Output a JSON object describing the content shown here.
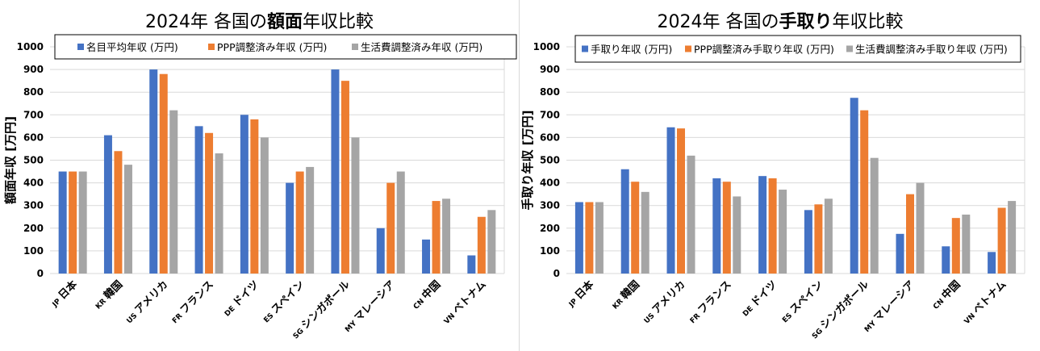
{
  "chart_data": [
    {
      "type": "bar",
      "title_parts": [
        "2024年 各国の",
        "額面",
        "年収比較"
      ],
      "ylabel": "額面年収 [万円]",
      "ylim": [
        0,
        1000
      ],
      "yticks": [
        "0",
        "100",
        "200",
        "300",
        "400",
        "500",
        "600",
        "700",
        "800",
        "900",
        "1000"
      ],
      "legend_position": "top",
      "categories": [
        {
          "code": "JP",
          "name": "日本"
        },
        {
          "code": "KR",
          "name": "韓国"
        },
        {
          "code": "US",
          "name": "アメリカ"
        },
        {
          "code": "FR",
          "name": "フランス"
        },
        {
          "code": "DE",
          "name": "ドイツ"
        },
        {
          "code": "ES",
          "name": "スペイン"
        },
        {
          "code": "SG",
          "name": "シンガポール"
        },
        {
          "code": "MY",
          "name": "マレーシア"
        },
        {
          "code": "CN",
          "name": "中国"
        },
        {
          "code": "VN",
          "name": "ベトナム"
        }
      ],
      "series": [
        {
          "name": "名目平均年収 (万円)",
          "color": "#4472C4",
          "values": [
            450,
            610,
            900,
            650,
            700,
            400,
            900,
            200,
            150,
            80
          ]
        },
        {
          "name": "PPP調整済み年収 (万円)",
          "color": "#ED7D31",
          "values": [
            450,
            540,
            880,
            620,
            680,
            450,
            850,
            400,
            320,
            250
          ]
        },
        {
          "name": "生活費調整済み年収 (万円)",
          "color": "#A5A5A5",
          "values": [
            450,
            480,
            720,
            530,
            600,
            470,
            600,
            450,
            330,
            280
          ]
        }
      ]
    },
    {
      "type": "bar",
      "title_parts": [
        "2024年 各国の",
        "手取り",
        "年収比較"
      ],
      "ylabel": "手取り年収 [万円]",
      "ylim": [
        0,
        1000
      ],
      "yticks": [
        "0",
        "100",
        "200",
        "300",
        "400",
        "500",
        "600",
        "700",
        "800",
        "900",
        "1000"
      ],
      "legend_position": "top",
      "categories": [
        {
          "code": "JP",
          "name": "日本"
        },
        {
          "code": "KR",
          "name": "韓国"
        },
        {
          "code": "US",
          "name": "アメリカ"
        },
        {
          "code": "FR",
          "name": "フランス"
        },
        {
          "code": "DE",
          "name": "ドイツ"
        },
        {
          "code": "ES",
          "name": "スペイン"
        },
        {
          "code": "SG",
          "name": "シンガポール"
        },
        {
          "code": "MY",
          "name": "マレーシア"
        },
        {
          "code": "CN",
          "name": "中国"
        },
        {
          "code": "VN",
          "name": "ベトナム"
        }
      ],
      "series": [
        {
          "name": "手取り年収 (万円)",
          "color": "#4472C4",
          "values": [
            315,
            460,
            645,
            420,
            430,
            280,
            775,
            175,
            120,
            95
          ]
        },
        {
          "name": "PPP調整済み手取り年収 (万円)",
          "color": "#ED7D31",
          "values": [
            315,
            405,
            640,
            405,
            420,
            305,
            720,
            350,
            245,
            290
          ]
        },
        {
          "name": "生活費調整済み手取り年収 (万円)",
          "color": "#A5A5A5",
          "values": [
            315,
            360,
            520,
            340,
            370,
            330,
            510,
            400,
            260,
            320
          ]
        }
      ]
    }
  ]
}
